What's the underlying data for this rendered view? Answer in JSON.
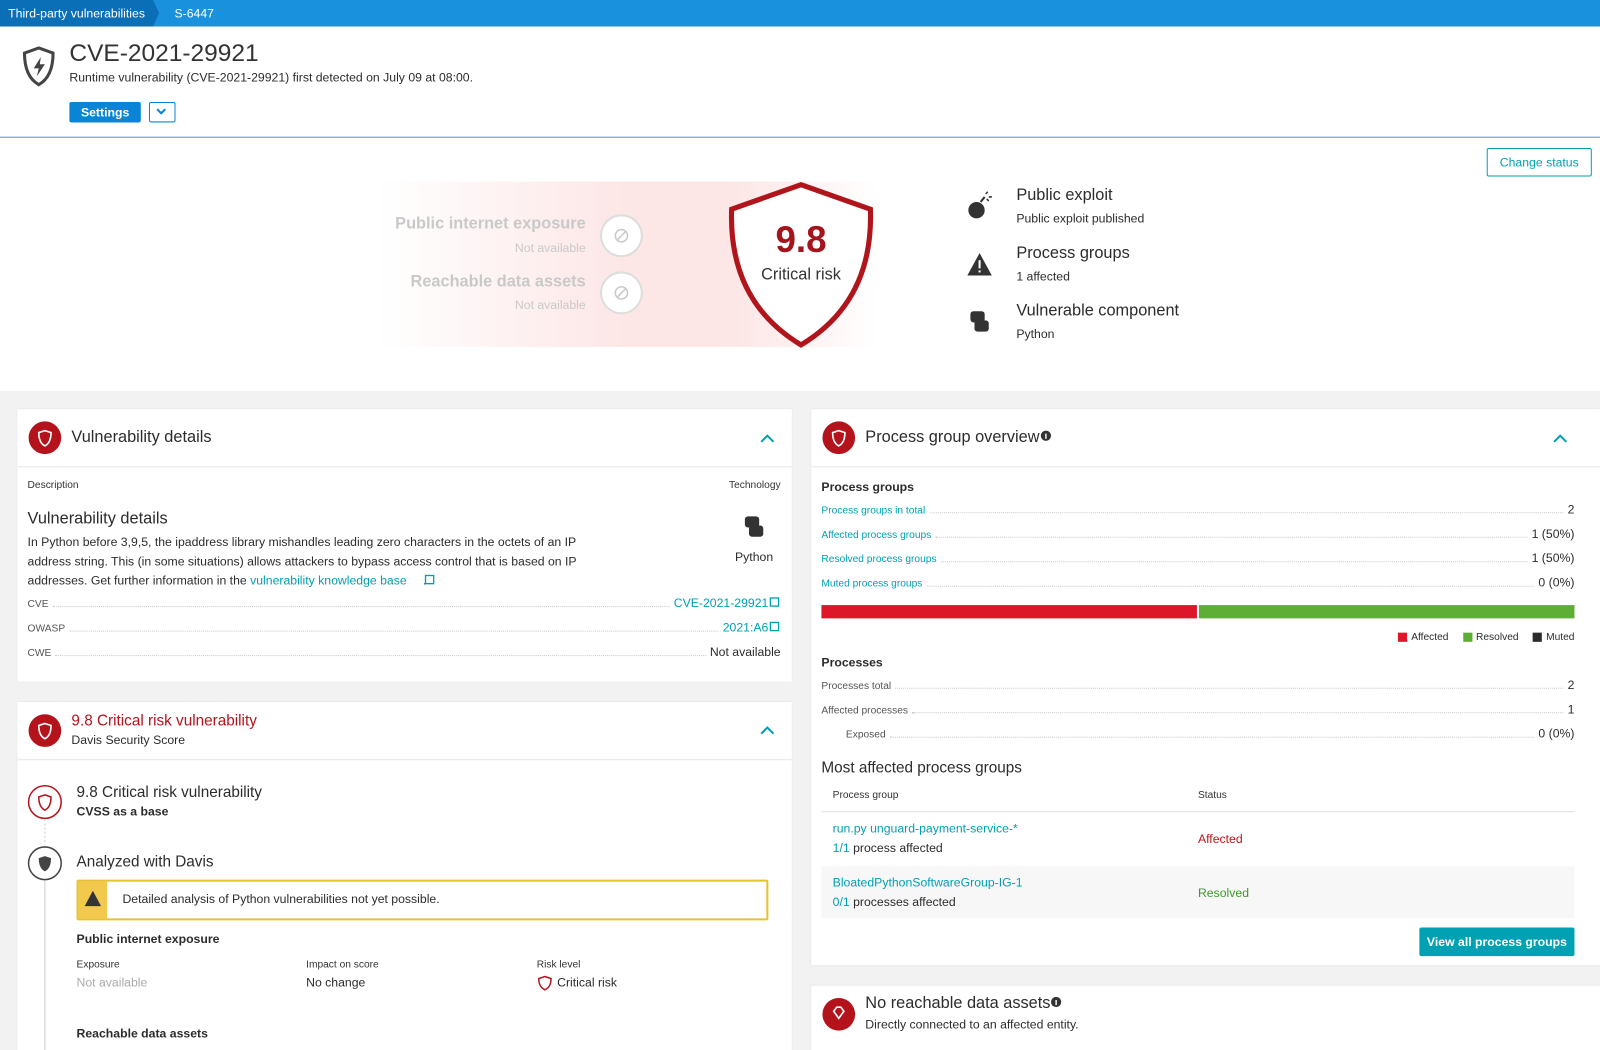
{
  "breadcrumb": [
    "Third-party vulnerabilities",
    "S-6447"
  ],
  "header": {
    "title": "CVE-2021-29921",
    "subtitle": "Runtime vulnerability (CVE-2021-29921) first detected on July 09 at 08:00.",
    "settings": "Settings"
  },
  "summary": {
    "change_status": "Change status",
    "factors": [
      {
        "label": "Public internet exposure",
        "status": "Not available"
      },
      {
        "label": "Reachable data assets",
        "status": "Not available"
      }
    ],
    "score": "9.8",
    "score_label": "Critical risk",
    "facts": [
      {
        "title": "Public exploit",
        "detail": "Public exploit published"
      },
      {
        "title": "Process groups",
        "detail": "1 affected"
      },
      {
        "title": "Vulnerable component",
        "detail": "Python"
      }
    ]
  },
  "vulnerability_details": {
    "title": "Vulnerability details",
    "description_label": "Description",
    "technology_label": "Technology",
    "heading": "Vulnerability details",
    "text": "In Python before 3,9,5, the ipaddress library mishandles leading zero characters in the octets of an IP address string. This (in some situations) allows attackers to bypass access control that is based on IP addresses. Get further information in the ",
    "link": "vulnerability knowledge base",
    "text_end": ".",
    "technology": "Python",
    "references": [
      {
        "label": "CVE",
        "value": "CVE-2021-29921"
      },
      {
        "label": "OWASP",
        "value": "2021:A6"
      },
      {
        "label": "CWE",
        "value": "Not available"
      }
    ]
  },
  "risk_assessment": {
    "title": "9.8 Critical risk vulnerability",
    "subtitle": "Davis Security Score",
    "steps": [
      {
        "title": "9.8 Critical risk vulnerability",
        "subtitle": "CVSS as a base"
      },
      {
        "title": "Analyzed with Davis"
      }
    ],
    "warning": "Detailed analysis of Python vulnerabilities not yet possible.",
    "exposure": {
      "heading": "Public internet exposure",
      "columns": [
        {
          "label": "Exposure",
          "value": "Not available"
        },
        {
          "label": "Impact on score",
          "value": "No change"
        },
        {
          "label": "Risk level",
          "value": "Critical risk"
        }
      ]
    },
    "data_assets_heading": "Reachable data assets"
  },
  "process_group_overview": {
    "title": "Process group overview",
    "groups_heading": "Process groups",
    "total": {
      "label": "Process groups in total",
      "value": 2
    },
    "breakdown": [
      {
        "label": "Affected process groups",
        "value": 1,
        "value_label": "1 (50%)",
        "legend": "Affected",
        "color": "#dc172a"
      },
      {
        "label": "Resolved process groups",
        "value": 1,
        "value_label": "1 (50%)",
        "legend": "Resolved",
        "color": "#5ead35"
      },
      {
        "label": "Muted process groups",
        "value": 0,
        "value_label": "0 (0%)",
        "legend": "Muted",
        "color": "#2b2b2b"
      }
    ],
    "processes_heading": "Processes",
    "processes": [
      {
        "label": "Processes total",
        "value": 2
      },
      {
        "label": "Affected processes",
        "value": 1
      },
      {
        "label": "Exposed",
        "value": 0,
        "value_label": "0 (0%)"
      }
    ],
    "most_affected": {
      "heading": "Most affected process groups",
      "columns": [
        "Process group",
        "Status"
      ],
      "rows": [
        {
          "name": "run.py unguard-payment-service-*",
          "ratio": "1/1",
          "ratio_text": "process affected",
          "status": "Affected"
        },
        {
          "name": "BloatedPythonSoftwareGroup-IG-1",
          "ratio": "0/1",
          "ratio_text": "processes affected",
          "status": "Resolved"
        }
      ]
    },
    "button": "View all process groups"
  },
  "data_assets": {
    "title": "No reachable data assets",
    "subtitle": "Directly connected to an affected entity."
  }
}
